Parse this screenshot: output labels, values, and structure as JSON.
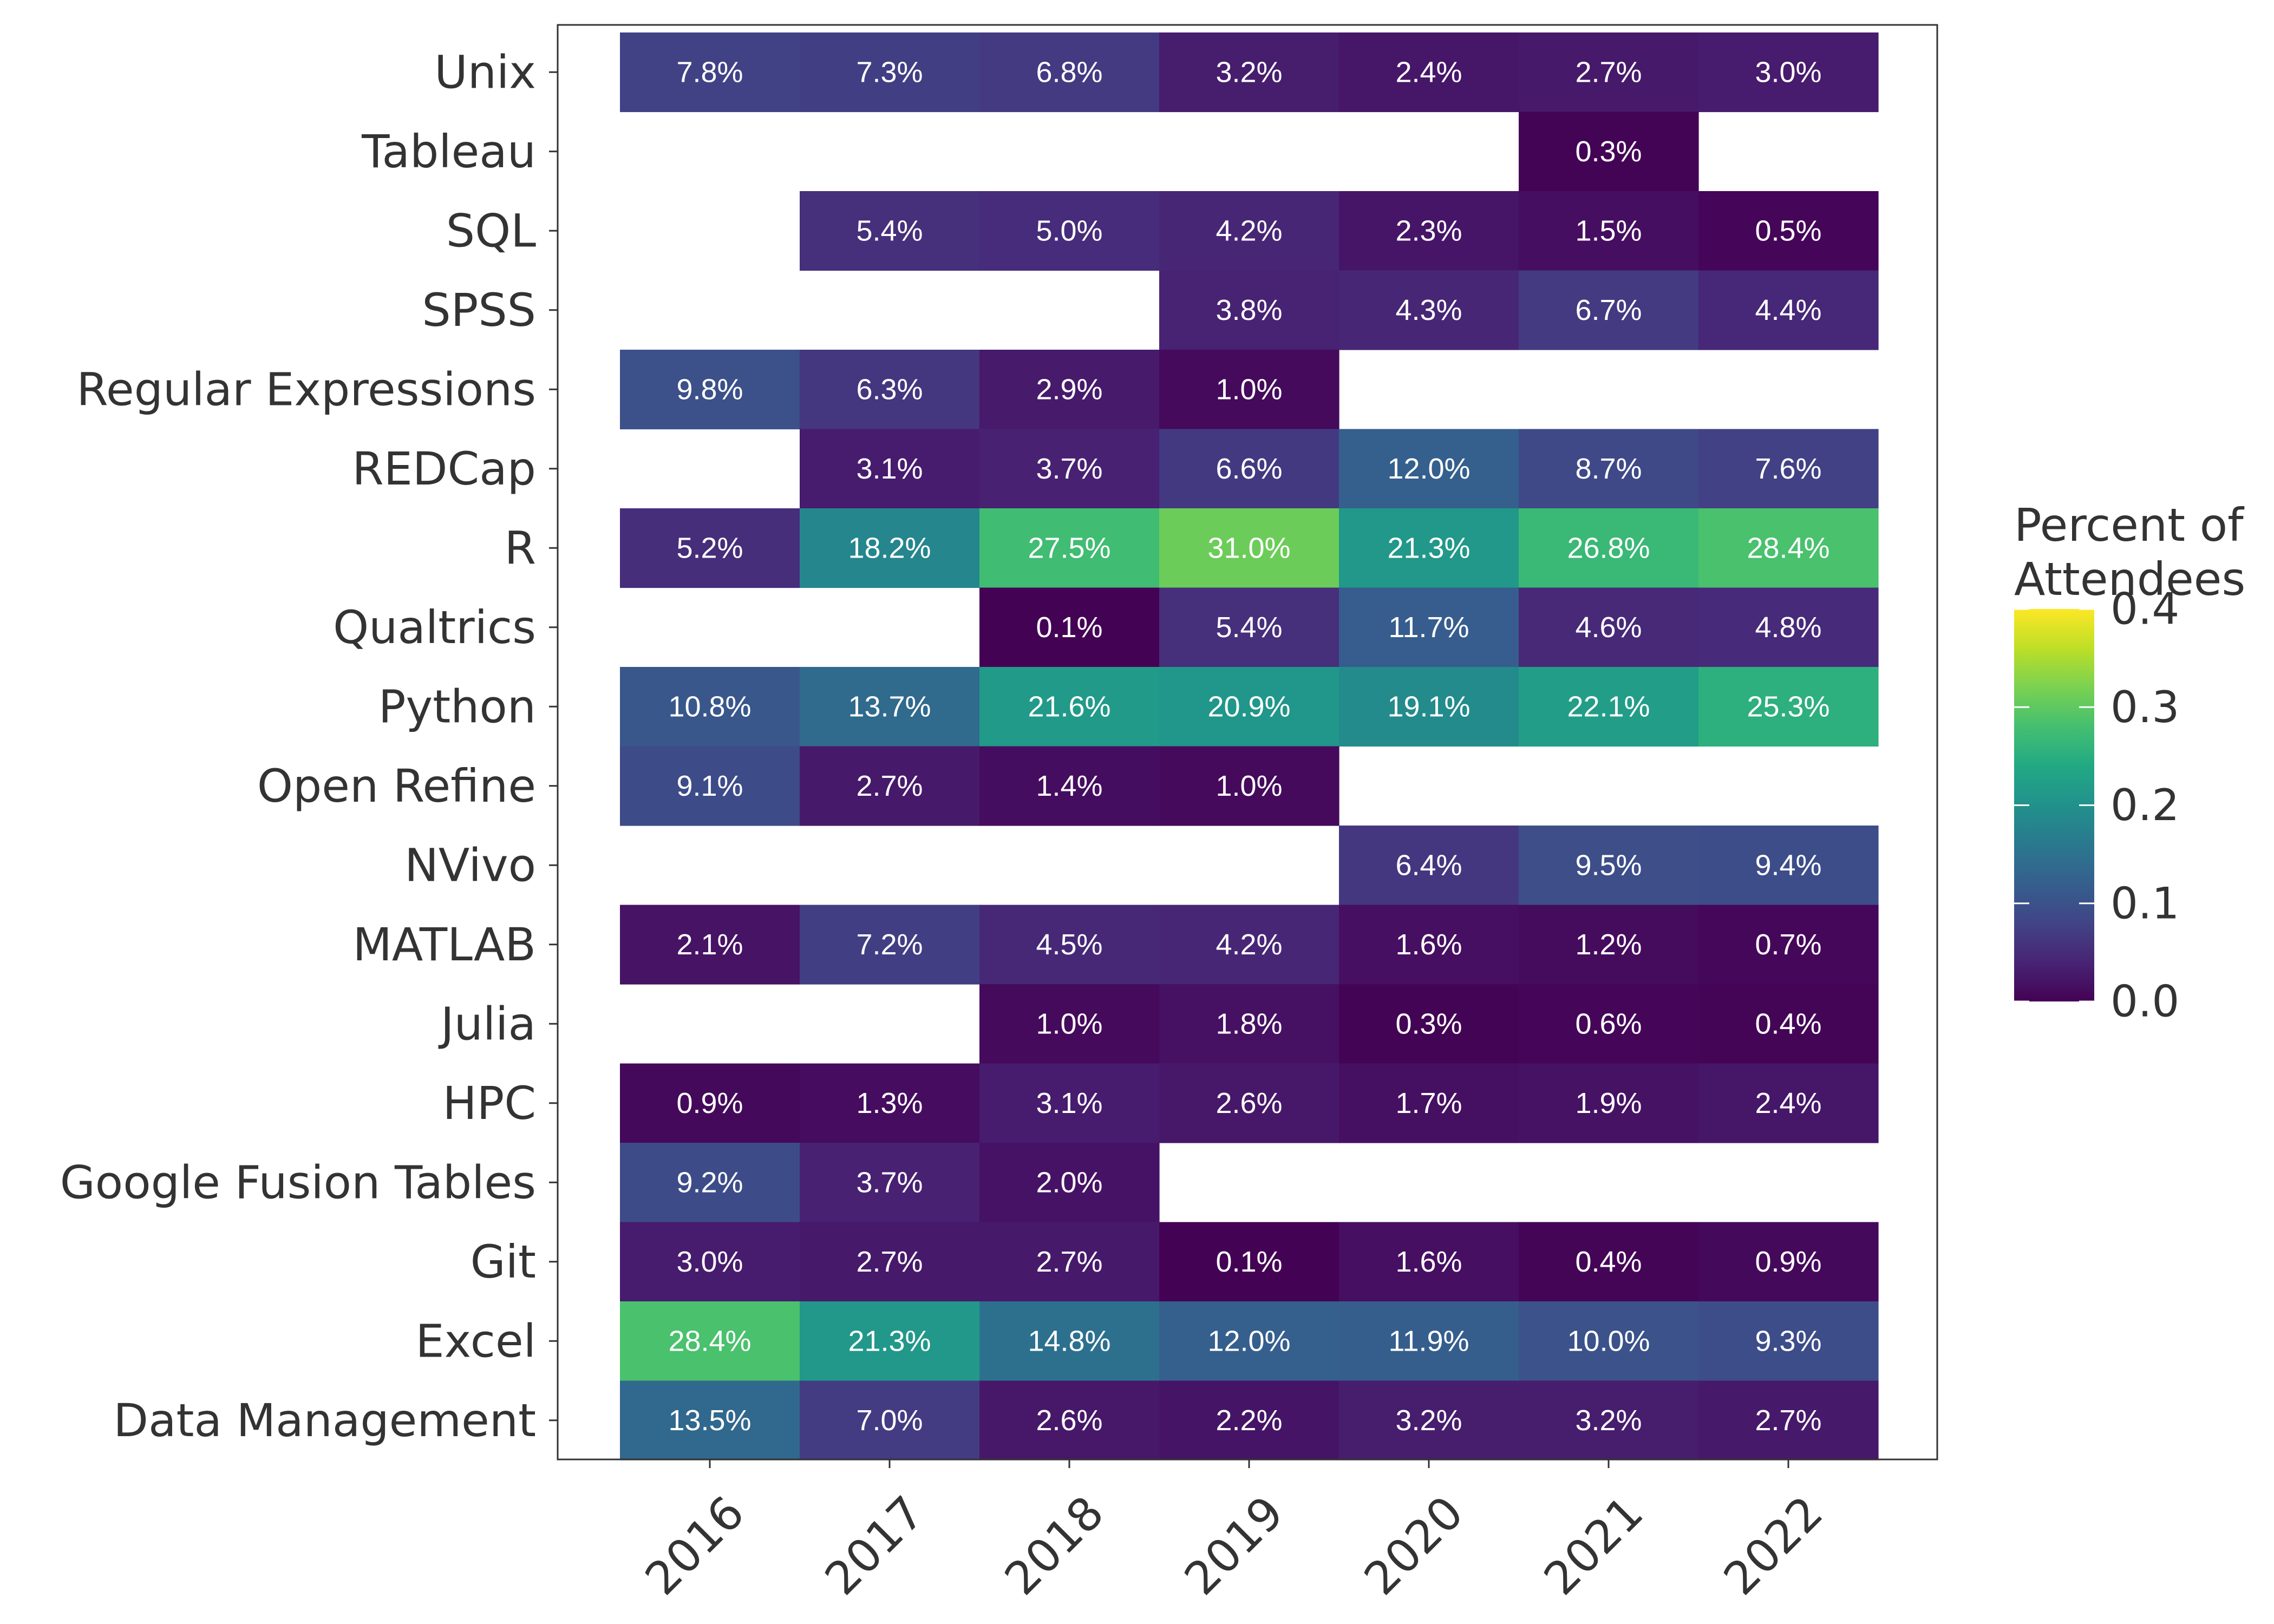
{
  "chart_data": {
    "type": "heatmap",
    "title": "",
    "xlabel": "",
    "ylabel": "",
    "x": [
      "2016",
      "2017",
      "2018",
      "2019",
      "2020",
      "2021",
      "2022"
    ],
    "y": [
      "Unix",
      "Tableau",
      "SQL",
      "SPSS",
      "Regular Expressions",
      "REDCap",
      "R",
      "Qualtrics",
      "Python",
      "Open Refine",
      "NVivo",
      "MATLAB",
      "Julia",
      "HPC",
      "Google Fusion Tables",
      "Git",
      "Excel",
      "Data Management"
    ],
    "values": [
      [
        0.078,
        0.073,
        0.068,
        0.032,
        0.024,
        0.027,
        0.03
      ],
      [
        null,
        null,
        null,
        null,
        null,
        0.003,
        null
      ],
      [
        null,
        0.054,
        0.05,
        0.042,
        0.023,
        0.015,
        0.005
      ],
      [
        null,
        null,
        null,
        0.038,
        0.043,
        0.067,
        0.044
      ],
      [
        0.098,
        0.063,
        0.029,
        0.01,
        null,
        null,
        null
      ],
      [
        null,
        0.031,
        0.037,
        0.066,
        0.12,
        0.087,
        0.076
      ],
      [
        0.052,
        0.182,
        0.275,
        0.31,
        0.213,
        0.268,
        0.284
      ],
      [
        null,
        null,
        0.001,
        0.054,
        0.117,
        0.046,
        0.048
      ],
      [
        0.108,
        0.137,
        0.216,
        0.209,
        0.191,
        0.221,
        0.253
      ],
      [
        0.091,
        0.027,
        0.014,
        0.01,
        null,
        null,
        null
      ],
      [
        null,
        null,
        null,
        null,
        0.064,
        0.095,
        0.094
      ],
      [
        0.021,
        0.072,
        0.045,
        0.042,
        0.016,
        0.012,
        0.007
      ],
      [
        null,
        null,
        0.01,
        0.018,
        0.003,
        0.006,
        0.004
      ],
      [
        0.009,
        0.013,
        0.031,
        0.026,
        0.017,
        0.019,
        0.024
      ],
      [
        0.092,
        0.037,
        0.02,
        null,
        null,
        null,
        null
      ],
      [
        0.03,
        0.027,
        0.027,
        0.001,
        0.016,
        0.004,
        0.009
      ],
      [
        0.284,
        0.213,
        0.148,
        0.12,
        0.119,
        0.1,
        0.093
      ],
      [
        0.135,
        0.07,
        0.026,
        0.022,
        0.032,
        0.032,
        0.027
      ]
    ],
    "labels": [
      [
        "7.8%",
        "7.3%",
        "6.8%",
        "3.2%",
        "2.4%",
        "2.7%",
        "3.0%"
      ],
      [
        null,
        null,
        null,
        null,
        null,
        "0.3%",
        null
      ],
      [
        null,
        "5.4%",
        "5.0%",
        "4.2%",
        "2.3%",
        "1.5%",
        "0.5%"
      ],
      [
        null,
        null,
        null,
        "3.8%",
        "4.3%",
        "6.7%",
        "4.4%"
      ],
      [
        "9.8%",
        "6.3%",
        "2.9%",
        "1.0%",
        null,
        null,
        null
      ],
      [
        null,
        "3.1%",
        "3.7%",
        "6.6%",
        "12.0%",
        "8.7%",
        "7.6%"
      ],
      [
        "5.2%",
        "18.2%",
        "27.5%",
        "31.0%",
        "21.3%",
        "26.8%",
        "28.4%"
      ],
      [
        null,
        null,
        "0.1%",
        "5.4%",
        "11.7%",
        "4.6%",
        "4.8%"
      ],
      [
        "10.8%",
        "13.7%",
        "21.6%",
        "20.9%",
        "19.1%",
        "22.1%",
        "25.3%"
      ],
      [
        "9.1%",
        "2.7%",
        "1.4%",
        "1.0%",
        null,
        null,
        null
      ],
      [
        null,
        null,
        null,
        null,
        "6.4%",
        "9.5%",
        "9.4%"
      ],
      [
        "2.1%",
        "7.2%",
        "4.5%",
        "4.2%",
        "1.6%",
        "1.2%",
        "0.7%"
      ],
      [
        null,
        null,
        "1.0%",
        "1.8%",
        "0.3%",
        "0.6%",
        "0.4%"
      ],
      [
        "0.9%",
        "1.3%",
        "3.1%",
        "2.6%",
        "1.7%",
        "1.9%",
        "2.4%"
      ],
      [
        "9.2%",
        "3.7%",
        "2.0%",
        null,
        null,
        null,
        null
      ],
      [
        "3.0%",
        "2.7%",
        "2.7%",
        "0.1%",
        "1.6%",
        "0.4%",
        "0.9%"
      ],
      [
        "28.4%",
        "21.3%",
        "14.8%",
        "12.0%",
        "11.9%",
        "10.0%",
        "9.3%"
      ],
      [
        "13.5%",
        "7.0%",
        "2.6%",
        "2.2%",
        "3.2%",
        "3.2%",
        "2.7%"
      ]
    ],
    "colorbar": {
      "title": [
        "Percent of",
        "Attendees"
      ],
      "range": [
        0,
        0.4
      ],
      "ticks": [
        "0.0",
        "0.1",
        "0.2",
        "0.3",
        "0.4"
      ],
      "colormap": "viridis"
    },
    "legend_position": "right",
    "grid": false
  }
}
